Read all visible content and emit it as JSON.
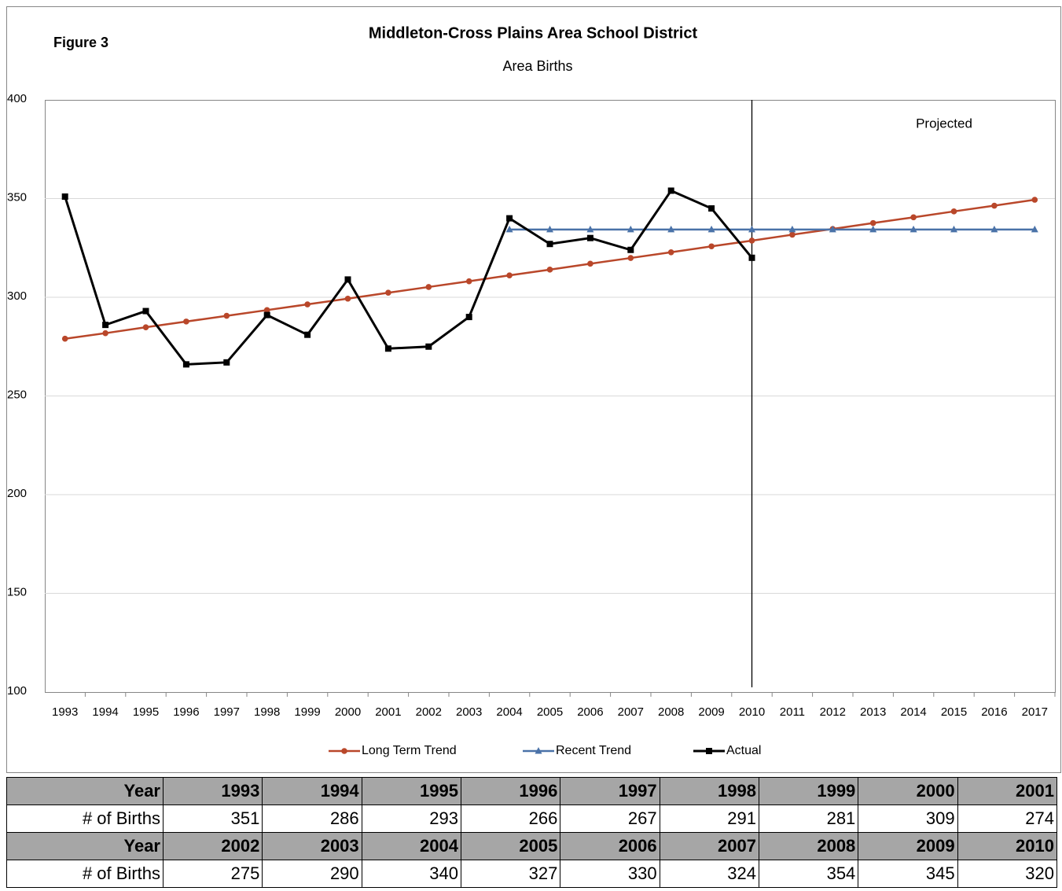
{
  "chart_data": {
    "type": "line",
    "figure_label": "Figure 3",
    "title": "Middleton-Cross Plains Area School District",
    "subtitle": "Area Births",
    "annotation": "Projected",
    "categories": [
      "1993",
      "1994",
      "1995",
      "1996",
      "1997",
      "1998",
      "1999",
      "2000",
      "2001",
      "2002",
      "2003",
      "2004",
      "2005",
      "2006",
      "2007",
      "2008",
      "2009",
      "2010",
      "2011",
      "2012",
      "2013",
      "2014",
      "2015",
      "2016",
      "2017"
    ],
    "series": [
      {
        "name": "Long Term Trend",
        "color": "#b9472a",
        "marker": "circle",
        "values": [
          279,
          281.8,
          284.8,
          287.7,
          290.6,
          293.5,
          296.4,
          299.3,
          302.3,
          305.2,
          308.1,
          311.1,
          314,
          317,
          319.9,
          322.8,
          325.8,
          328.7,
          331.7,
          334.6,
          337.6,
          340.5,
          343.5,
          346.4,
          349.4
        ]
      },
      {
        "name": "Recent Trend",
        "color": "#4a72a8",
        "marker": "triangle",
        "values": [
          null,
          null,
          null,
          null,
          null,
          null,
          null,
          null,
          null,
          null,
          null,
          334.3,
          334.3,
          334.3,
          334.3,
          334.3,
          334.3,
          334.3,
          334.3,
          334.3,
          334.3,
          334.3,
          334.3,
          334.3,
          334.3
        ]
      },
      {
        "name": "Actual",
        "color": "#000000",
        "marker": "square",
        "values": [
          351,
          286,
          293,
          266,
          267,
          291,
          281,
          309,
          274,
          275,
          290,
          340,
          327,
          330,
          324,
          354,
          345,
          320,
          null,
          null,
          null,
          null,
          null,
          null,
          null
        ]
      }
    ],
    "ylim": [
      100,
      400
    ],
    "yticks": [
      100,
      150,
      200,
      250,
      300,
      350,
      400
    ],
    "grid": true,
    "legend": "bottom"
  },
  "table": {
    "rows": [
      [
        "Year",
        "1993",
        "1994",
        "1995",
        "1996",
        "1997",
        "1998",
        "1999",
        "2000",
        "2001"
      ],
      [
        "# of Births",
        351,
        286,
        293,
        266,
        267,
        291,
        281,
        309,
        274
      ],
      [
        "Year",
        "2002",
        "2003",
        "2004",
        "2005",
        "2006",
        "2007",
        "2008",
        "2009",
        "2010"
      ],
      [
        "# of Births",
        275,
        290,
        340,
        327,
        330,
        324,
        354,
        345,
        320
      ]
    ]
  }
}
